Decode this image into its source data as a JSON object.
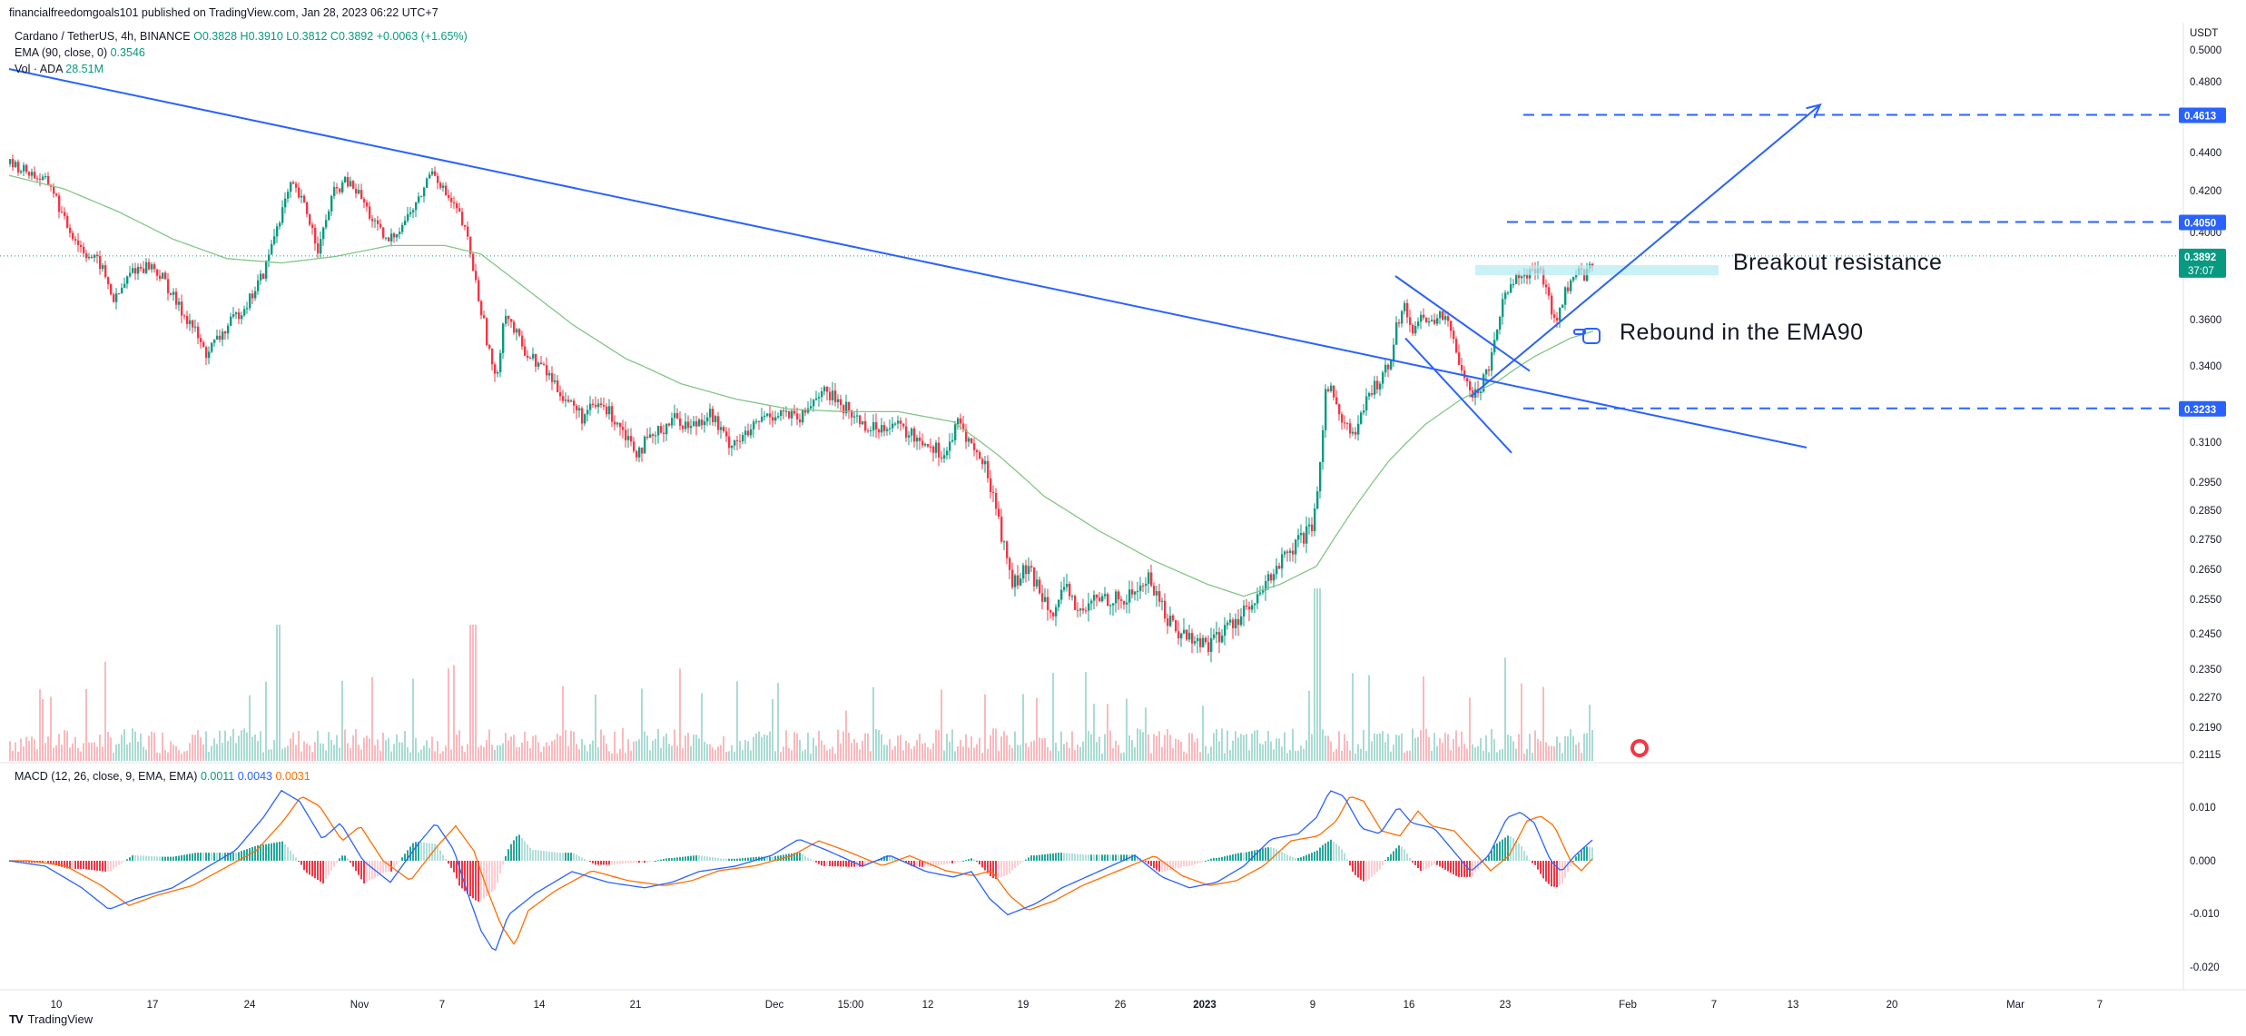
{
  "publisher": "financialfreedomgoals101 published on TradingView.com, Jan 28, 2023 06:22 UTC+7",
  "legend": {
    "symbol": "Cardano / TetherUS, 4h, BINANCE",
    "ohlc": "O0.3828 H0.3910 L0.3812 C0.3892 +0.0063 (+1.65%)",
    "ema_label": "EMA (90, close, 0)",
    "ema_value": "0.3546",
    "vol_label": "Vol · ADA",
    "vol_value": "28.51M",
    "macd_label": "MACD (12, 26, close, 9, EMA, EMA)",
    "macd_v1": "0.0011",
    "macd_v2": "0.0043",
    "macd_v3": "0.0031"
  },
  "annotations": {
    "breakout": "Breakout resistance",
    "rebound": "Rebound in the EMA90"
  },
  "footer": {
    "logo": "TV",
    "brand": "TradingView"
  },
  "colors": {
    "up": "#089981",
    "down": "#f23645",
    "trend": "#2962ff",
    "ema": "#81c784",
    "macd": "#2962ff",
    "signal": "#ff6d00",
    "label_blue": "#2962ff",
    "label_green": "#089981",
    "highlight": "#b2ebf2"
  },
  "chart_data": {
    "type": "candlestick",
    "currency": "USDT",
    "price_axis": [
      "0.5000",
      "0.4800",
      "0.4400",
      "0.4200",
      "0.4000",
      "0.3600",
      "0.3400",
      "0.3100",
      "0.2950",
      "0.2850",
      "0.2750",
      "0.2650",
      "0.2550",
      "0.2450",
      "0.2350",
      "0.2270",
      "0.2190",
      "0.2115"
    ],
    "price_labels": {
      "target": "0.4613",
      "resistance": "0.4050",
      "current": "0.3892",
      "countdown": "37:07",
      "support": "0.3233"
    },
    "macd_axis": [
      "0.010",
      "0.000",
      "-0.010",
      "-0.020"
    ],
    "time_axis": [
      "10",
      "17",
      "24",
      "Nov",
      "7",
      "14",
      "21",
      "Dec",
      "15:00",
      "12",
      "19",
      "26",
      "2023",
      "9",
      "16",
      "23",
      "Feb",
      "7",
      "13",
      "20",
      "Mar",
      "7"
    ],
    "price_path": [
      [
        0,
        0.434
      ],
      [
        20,
        0.43
      ],
      [
        45,
        0.423
      ],
      [
        60,
        0.405
      ],
      [
        80,
        0.392
      ],
      [
        100,
        0.385
      ],
      [
        115,
        0.368
      ],
      [
        135,
        0.383
      ],
      [
        155,
        0.385
      ],
      [
        170,
        0.378
      ],
      [
        185,
        0.366
      ],
      [
        200,
        0.358
      ],
      [
        215,
        0.345
      ],
      [
        230,
        0.352
      ],
      [
        250,
        0.362
      ],
      [
        265,
        0.37
      ],
      [
        280,
        0.382
      ],
      [
        295,
        0.405
      ],
      [
        310,
        0.423
      ],
      [
        325,
        0.412
      ],
      [
        340,
        0.392
      ],
      [
        355,
        0.418
      ],
      [
        370,
        0.425
      ],
      [
        385,
        0.418
      ],
      [
        400,
        0.405
      ],
      [
        415,
        0.395
      ],
      [
        430,
        0.403
      ],
      [
        450,
        0.415
      ],
      [
        465,
        0.432
      ],
      [
        480,
        0.418
      ],
      [
        495,
        0.408
      ],
      [
        505,
        0.395
      ],
      [
        515,
        0.372
      ],
      [
        525,
        0.352
      ],
      [
        535,
        0.332
      ],
      [
        545,
        0.365
      ],
      [
        555,
        0.355
      ],
      [
        570,
        0.345
      ],
      [
        590,
        0.338
      ],
      [
        610,
        0.328
      ],
      [
        630,
        0.32
      ],
      [
        650,
        0.325
      ],
      [
        670,
        0.318
      ],
      [
        690,
        0.307
      ],
      [
        710,
        0.312
      ],
      [
        730,
        0.32
      ],
      [
        750,
        0.316
      ],
      [
        770,
        0.322
      ],
      [
        790,
        0.31
      ],
      [
        810,
        0.312
      ],
      [
        830,
        0.32
      ],
      [
        850,
        0.322
      ],
      [
        870,
        0.318
      ],
      [
        890,
        0.33
      ],
      [
        910,
        0.327
      ],
      [
        930,
        0.32
      ],
      [
        950,
        0.315
      ],
      [
        970,
        0.318
      ],
      [
        990,
        0.313
      ],
      [
        1010,
        0.31
      ],
      [
        1030,
        0.305
      ],
      [
        1045,
        0.318
      ],
      [
        1060,
        0.308
      ],
      [
        1075,
        0.3
      ],
      [
        1085,
        0.288
      ],
      [
        1095,
        0.272
      ],
      [
        1105,
        0.26
      ],
      [
        1120,
        0.265
      ],
      [
        1135,
        0.258
      ],
      [
        1150,
        0.252
      ],
      [
        1165,
        0.258
      ],
      [
        1180,
        0.25
      ],
      [
        1195,
        0.255
      ],
      [
        1210,
        0.256
      ],
      [
        1225,
        0.254
      ],
      [
        1240,
        0.258
      ],
      [
        1255,
        0.262
      ],
      [
        1270,
        0.252
      ],
      [
        1285,
        0.246
      ],
      [
        1300,
        0.244
      ],
      [
        1315,
        0.242
      ],
      [
        1330,
        0.244
      ],
      [
        1345,
        0.248
      ],
      [
        1360,
        0.252
      ],
      [
        1370,
        0.252
      ],
      [
        1380,
        0.258
      ],
      [
        1395,
        0.266
      ],
      [
        1410,
        0.27
      ],
      [
        1425,
        0.276
      ],
      [
        1435,
        0.278
      ],
      [
        1440,
        0.29
      ],
      [
        1445,
        0.312
      ],
      [
        1450,
        0.335
      ],
      [
        1460,
        0.325
      ],
      [
        1470,
        0.318
      ],
      [
        1480,
        0.312
      ],
      [
        1490,
        0.322
      ],
      [
        1500,
        0.33
      ],
      [
        1510,
        0.336
      ],
      [
        1520,
        0.342
      ],
      [
        1528,
        0.36
      ],
      [
        1536,
        0.365
      ],
      [
        1545,
        0.356
      ],
      [
        1555,
        0.362
      ],
      [
        1565,
        0.358
      ],
      [
        1575,
        0.364
      ],
      [
        1585,
        0.356
      ],
      [
        1595,
        0.344
      ],
      [
        1605,
        0.335
      ],
      [
        1612,
        0.328
      ],
      [
        1620,
        0.332
      ],
      [
        1630,
        0.342
      ],
      [
        1640,
        0.362
      ],
      [
        1650,
        0.375
      ],
      [
        1660,
        0.382
      ],
      [
        1670,
        0.38
      ],
      [
        1680,
        0.383
      ],
      [
        1690,
        0.378
      ],
      [
        1698,
        0.364
      ],
      [
        1705,
        0.36
      ],
      [
        1712,
        0.372
      ],
      [
        1720,
        0.378
      ],
      [
        1728,
        0.382
      ],
      [
        1736,
        0.38
      ],
      [
        1745,
        0.389
      ]
    ],
    "ema_path": [
      [
        0,
        0.428
      ],
      [
        60,
        0.421
      ],
      [
        120,
        0.41
      ],
      [
        180,
        0.397
      ],
      [
        240,
        0.388
      ],
      [
        300,
        0.386
      ],
      [
        360,
        0.389
      ],
      [
        420,
        0.394
      ],
      [
        480,
        0.394
      ],
      [
        520,
        0.39
      ],
      [
        570,
        0.374
      ],
      [
        620,
        0.358
      ],
      [
        680,
        0.343
      ],
      [
        740,
        0.333
      ],
      [
        800,
        0.327
      ],
      [
        860,
        0.323
      ],
      [
        920,
        0.322
      ],
      [
        980,
        0.322
      ],
      [
        1040,
        0.318
      ],
      [
        1090,
        0.305
      ],
      [
        1140,
        0.29
      ],
      [
        1200,
        0.278
      ],
      [
        1260,
        0.268
      ],
      [
        1320,
        0.26
      ],
      [
        1360,
        0.256
      ],
      [
        1400,
        0.26
      ],
      [
        1440,
        0.266
      ],
      [
        1480,
        0.285
      ],
      [
        1520,
        0.303
      ],
      [
        1560,
        0.317
      ],
      [
        1600,
        0.327
      ],
      [
        1640,
        0.334
      ],
      [
        1680,
        0.344
      ],
      [
        1720,
        0.352
      ],
      [
        1745,
        0.355
      ]
    ],
    "drawings": {
      "downtrend": [
        [
          0,
          0.488
        ],
        [
          1980,
          0.308
        ]
      ],
      "uptrend_arrow": [
        [
          1610,
          0.328
        ],
        [
          1995,
          0.467
        ]
      ],
      "flag_upper": [
        [
          1527,
          0.38
        ],
        [
          1675,
          0.338
        ]
      ],
      "flag_lower": [
        [
          1538,
          0.352
        ],
        [
          1655,
          0.306
        ]
      ],
      "target_level": 0.4613,
      "resistance_level": 0.405,
      "support_level": 0.3233
    },
    "macd_path": [
      [
        0,
        0.0
      ],
      [
        40,
        -0.001
      ],
      [
        80,
        -0.005
      ],
      [
        110,
        -0.009
      ],
      [
        140,
        -0.007
      ],
      [
        180,
        -0.005
      ],
      [
        210,
        -0.002
      ],
      [
        250,
        0.002
      ],
      [
        280,
        0.008
      ],
      [
        300,
        0.013
      ],
      [
        320,
        0.011
      ],
      [
        345,
        0.004
      ],
      [
        365,
        0.007
      ],
      [
        390,
        0.0
      ],
      [
        420,
        -0.004
      ],
      [
        450,
        0.003
      ],
      [
        470,
        0.007
      ],
      [
        490,
        0.002
      ],
      [
        505,
        -0.006
      ],
      [
        520,
        -0.013
      ],
      [
        535,
        -0.017
      ],
      [
        550,
        -0.01
      ],
      [
        580,
        -0.006
      ],
      [
        620,
        -0.002
      ],
      [
        660,
        -0.004
      ],
      [
        700,
        -0.005
      ],
      [
        730,
        -0.004
      ],
      [
        760,
        -0.002
      ],
      [
        800,
        -0.001
      ],
      [
        840,
        0.001
      ],
      [
        870,
        0.004
      ],
      [
        900,
        0.002
      ],
      [
        940,
        -0.001
      ],
      [
        970,
        0.001
      ],
      [
        1010,
        -0.002
      ],
      [
        1040,
        -0.003
      ],
      [
        1060,
        -0.002
      ],
      [
        1080,
        -0.007
      ],
      [
        1100,
        -0.01
      ],
      [
        1130,
        -0.008
      ],
      [
        1160,
        -0.005
      ],
      [
        1200,
        -0.002
      ],
      [
        1240,
        0.001
      ],
      [
        1270,
        -0.003
      ],
      [
        1300,
        -0.005
      ],
      [
        1330,
        -0.004
      ],
      [
        1360,
        -0.001
      ],
      [
        1390,
        0.004
      ],
      [
        1420,
        0.005
      ],
      [
        1440,
        0.008
      ],
      [
        1455,
        0.013
      ],
      [
        1470,
        0.012
      ],
      [
        1490,
        0.006
      ],
      [
        1510,
        0.005
      ],
      [
        1530,
        0.01
      ],
      [
        1545,
        0.007
      ],
      [
        1570,
        0.006
      ],
      [
        1595,
        0.001
      ],
      [
        1610,
        -0.002
      ],
      [
        1630,
        0.001
      ],
      [
        1650,
        0.008
      ],
      [
        1665,
        0.009
      ],
      [
        1680,
        0.007
      ],
      [
        1698,
        0.0
      ],
      [
        1710,
        -0.002
      ],
      [
        1725,
        0.001
      ],
      [
        1745,
        0.004
      ]
    ]
  }
}
